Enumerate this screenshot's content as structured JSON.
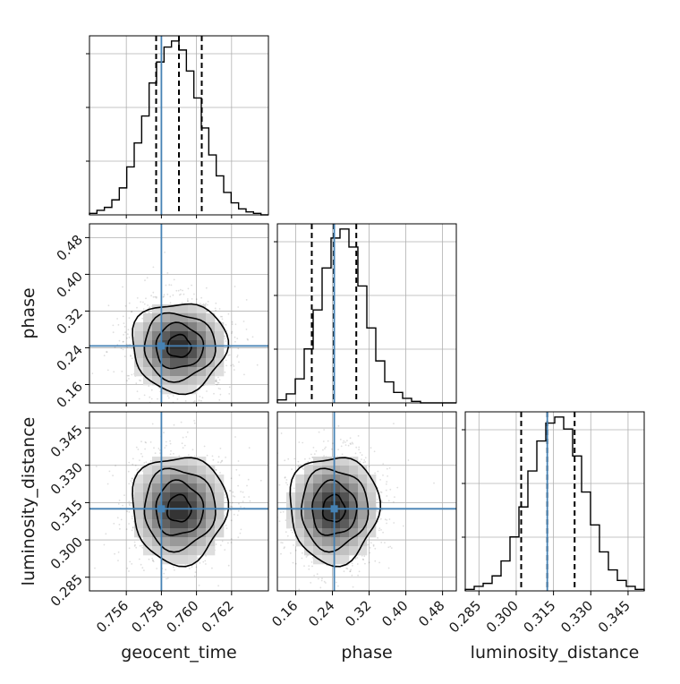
{
  "chart_data": {
    "type": "corner",
    "parameters": [
      {
        "name": "geocent_time",
        "label": "geocent_time",
        "range": [
          0.7539,
          0.7641
        ],
        "ticks": [
          "0.756",
          "0.758",
          "0.760",
          "0.762"
        ],
        "truth": 0.758,
        "quantiles": [
          0.7577,
          0.759,
          0.7603
        ]
      },
      {
        "name": "phase",
        "label": "phase",
        "range": [
          0.12,
          0.51
        ],
        "ticks": [
          "0.16",
          "0.24",
          "0.32",
          "0.40",
          "0.48"
        ],
        "truth": 0.244,
        "quantiles": [
          0.195,
          0.243,
          0.292
        ]
      },
      {
        "name": "luminosity_distance",
        "label": "luminosity_distance",
        "range": [
          0.2795,
          0.3515
        ],
        "ticks": [
          "0.285",
          "0.300",
          "0.315",
          "0.330",
          "0.345"
        ],
        "truth": 0.3125,
        "quantiles": [
          0.302,
          0.3125,
          0.3235
        ]
      }
    ],
    "histograms": [
      {
        "parameter": "geocent_time",
        "counts": [
          1,
          3,
          5,
          10,
          18,
          32,
          48,
          66,
          88,
          102,
          112,
          116,
          110,
          96,
          78,
          58,
          40,
          26,
          15,
          8,
          4,
          2,
          1,
          0
        ]
      },
      {
        "parameter": "phase",
        "counts": [
          2,
          6,
          16,
          36,
          62,
          90,
          110,
          116,
          104,
          78,
          50,
          28,
          14,
          7,
          3,
          1,
          0,
          0,
          0,
          0
        ]
      },
      {
        "parameter": "luminosity_distance",
        "counts": [
          1,
          3,
          5,
          10,
          20,
          36,
          56,
          80,
          100,
          112,
          116,
          108,
          90,
          66,
          44,
          26,
          14,
          7,
          3,
          1
        ]
      }
    ],
    "joint": [
      {
        "x": "geocent_time",
        "y": "phase",
        "center": [
          0.759,
          0.243
        ],
        "sd": [
          0.00135,
          0.0485
        ]
      },
      {
        "x": "geocent_time",
        "y": "luminosity_distance",
        "center": [
          0.759,
          0.3125
        ],
        "sd": [
          0.00135,
          0.0108
        ]
      },
      {
        "x": "phase",
        "y": "luminosity_distance",
        "center": [
          0.243,
          0.3125
        ],
        "sd": [
          0.0485,
          0.0108
        ]
      }
    ],
    "contour_levels_sigma": [
      0.5,
      1.0,
      1.5,
      2.0
    ],
    "truth_color": "#4682b4",
    "hist_color": "#000000",
    "grid": true
  }
}
